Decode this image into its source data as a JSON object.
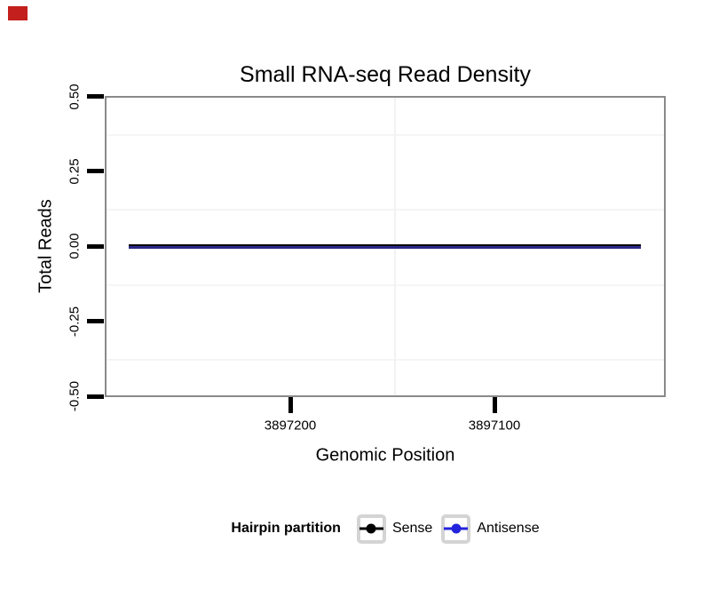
{
  "indicator": {
    "description": "small solid red rectangle in top-left corner",
    "color": "#c3201d"
  },
  "chart_data": {
    "type": "line",
    "title": "Small RNA-seq Read Density",
    "xlabel": "Genomic Position",
    "ylabel": "Total Reads",
    "x_tick_labels": [
      "3897200",
      "3897100"
    ],
    "y_tick_labels": [
      "0.50",
      "0.25",
      "0.00",
      "-0.25",
      "-0.50"
    ],
    "x_axis_reversed": true,
    "x_range": [
      3897293,
      3897016
    ],
    "ylim": [
      -0.5,
      0.5
    ],
    "grid": "faint minor gridlines only",
    "legend_title": "Hairpin partition",
    "legend_position": "bottom",
    "series": [
      {
        "name": "Sense",
        "color": "#000000",
        "x": [
          3897281,
          3897150,
          3897028
        ],
        "values": [
          0,
          0,
          0
        ]
      },
      {
        "name": "Antisense",
        "color": "#2323dc",
        "x": [
          3897281,
          3897150,
          3897028
        ],
        "values": [
          0,
          0,
          0
        ]
      }
    ]
  },
  "colors": {
    "panel_border": "#8a8a8a",
    "tick_marks": "#000000",
    "minor_gridline": "#f5f5f5",
    "legend_key_border": "#d4d4d4",
    "background": "#ffffff"
  }
}
